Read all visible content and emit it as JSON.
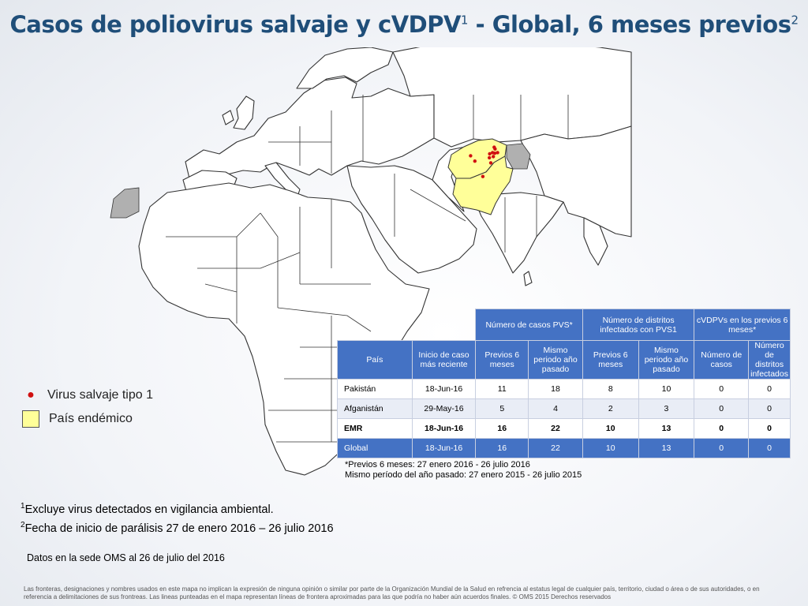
{
  "title": {
    "main": "Casos de poliovirus salvaje y cVDPV",
    "sup1": "1",
    "rest": " - Global, 6 meses previos",
    "sup2": "2"
  },
  "map": {
    "colors": {
      "land": "#ffffff",
      "border": "#333333",
      "endemic": "#ffff99",
      "not_applicable": "#b0b0b0",
      "case_dot": "#d01010"
    },
    "endemic_countries": [
      "Afganistán",
      "Pakistán"
    ],
    "case_points_lonlat": [
      [
        71.2,
        36.5
      ],
      [
        71.5,
        35.9
      ],
      [
        70.6,
        34.6
      ],
      [
        71.4,
        34.4
      ],
      [
        72.4,
        34.6
      ],
      [
        69.6,
        34.2
      ],
      [
        70.9,
        33.2
      ],
      [
        69.5,
        32.8
      ],
      [
        62.9,
        33.5
      ],
      [
        64.4,
        31.6
      ],
      [
        70.0,
        31.0
      ],
      [
        67.2,
        26.2
      ]
    ]
  },
  "legend": {
    "wild_virus": "Virus salvaje tipo 1",
    "endemic_country": "País endémico"
  },
  "table": {
    "group_headers": {
      "cases": "Número de casos PVS*",
      "districts": "Número de distritos infectados con PVS1",
      "cvdpv": "cVDPVs en los previos 6 meses*"
    },
    "columns": [
      "País",
      "Inicio de caso más reciente",
      "Previos 6 meses",
      "Mismo periodo año pasado",
      "Previos 6 meses",
      "Mismo periodo año pasado",
      "Número de casos",
      "Número de distritos infectados"
    ],
    "rows": [
      [
        "Pakistán",
        "18-Jun-16",
        "11",
        "18",
        "8",
        "10",
        "0",
        "0"
      ],
      [
        "Afganistán",
        "29-May-16",
        "5",
        "4",
        "2",
        "3",
        "0",
        "0"
      ],
      [
        "EMR",
        "18-Jun-16",
        "16",
        "22",
        "10",
        "13",
        "0",
        "0"
      ],
      [
        "Global",
        "18-Jun-16",
        "16",
        "22",
        "10",
        "13",
        "0",
        "0"
      ]
    ]
  },
  "notes": {
    "line1": "*Previos 6 meses: 27 enero 2016 - 26 julio 2016",
    "line2": "Mismo período del año pasado: 27 enero 2015 - 26 julio 2015"
  },
  "footnotes": {
    "f1_num": "1",
    "f1_text": "Excluye virus detectados en vigilancia ambiental.",
    "f2_num": "2",
    "f2_text": "Fecha de inicio de parálisis 27 de enero 2016 – 26 julio 2016"
  },
  "source": "Datos en la sede OMS al 26 de julio del 2016",
  "disclaimer": "Las fronteras, designaciones y nombres usados en este mapa no implican la expresión de ninguna opinión o similar por parte de la Organización Mundial de la Salud en refrencia al estatus legal de cualquier país, territorio, ciudad o área o de sus autoridades, o en referencia a delimitaciones de sus frontreas. Las lineas punteadas en el mapa representan líneas de frontera aproximadas para las que podría no haber aún acuerdos finales. © OMS 2015 Derechos reservados"
}
